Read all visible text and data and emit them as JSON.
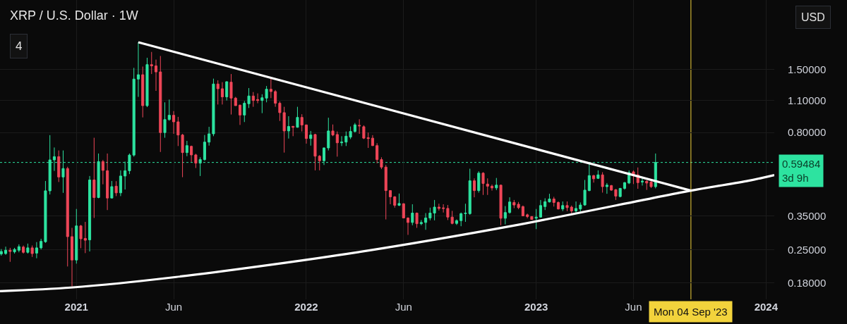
{
  "chart_data": {
    "type": "candlestick",
    "title": "XRP / U.S. Dollar · 1W",
    "log": true,
    "grid": true,
    "xlim": [
      "2020-09-05",
      "2024-01-14"
    ],
    "xticks": [
      {
        "value": "2021-01-04",
        "label": "2021"
      },
      {
        "value": "2021-06-07",
        "label": "Jun"
      },
      {
        "value": "2022-01-03",
        "label": "2022"
      },
      {
        "value": "2022-06-06",
        "label": "Jun"
      },
      {
        "value": "2023-01-02",
        "label": "2023"
      },
      {
        "value": "2023-06-05",
        "label": "Jun"
      },
      {
        "value": "2024-01-01",
        "label": "2024"
      }
    ],
    "ylim": [
      0.153,
      2.98
    ],
    "yticks": [
      {
        "value": 0.18,
        "label": "0.18000"
      },
      {
        "value": 0.25,
        "label": "0.25000"
      },
      {
        "value": 0.35,
        "label": "0.35000"
      },
      {
        "value": 0.8,
        "label": "0.80000"
      },
      {
        "value": 1.1,
        "label": "1.10000"
      },
      {
        "value": 1.5,
        "label": "1.50000"
      }
    ],
    "series": [
      {
        "type": "line",
        "color": "#ffffff",
        "x": [
          "2020-09-05",
          "2020-12-26",
          "2021-06-11",
          "2022-03-07",
          "2022-11-30",
          "2023-09-04",
          "2023-12-04",
          "2024-01-14"
        ],
        "values": [
          0.166,
          0.172,
          0.191,
          0.24,
          0.319,
          0.45,
          0.496,
          0.525
        ]
      },
      {
        "type": "line",
        "color": "#ffffff",
        "x": [
          "2021-04-12",
          "2023-09-04"
        ],
        "values": [
          1.96,
          0.45
        ]
      },
      {
        "x": [
          "2020-09-07",
          "2020-09-14",
          "2020-09-21",
          "2020-09-28",
          "2020-10-05",
          "2020-10-12",
          "2020-10-19",
          "2020-10-26",
          "2020-11-02",
          "2020-11-09",
          "2020-11-16",
          "2020-11-23",
          "2020-11-30",
          "2020-12-07",
          "2020-12-14",
          "2020-12-21",
          "2020-12-28",
          "2021-01-04",
          "2021-01-11",
          "2021-01-18",
          "2021-01-25",
          "2021-02-01",
          "2021-02-08",
          "2021-02-15",
          "2021-02-22",
          "2021-03-01",
          "2021-03-08",
          "2021-03-15",
          "2021-03-22",
          "2021-03-29",
          "2021-04-05",
          "2021-04-12",
          "2021-04-19",
          "2021-04-26",
          "2021-05-03",
          "2021-05-10",
          "2021-05-17",
          "2021-05-24",
          "2021-05-31",
          "2021-06-07",
          "2021-06-14",
          "2021-06-21",
          "2021-06-28",
          "2021-07-05",
          "2021-07-12",
          "2021-07-19",
          "2021-07-26",
          "2021-08-02",
          "2021-08-09",
          "2021-08-16",
          "2021-08-23",
          "2021-08-30",
          "2021-09-06",
          "2021-09-13",
          "2021-09-20",
          "2021-09-27",
          "2021-10-04",
          "2021-10-11",
          "2021-10-18",
          "2021-10-25",
          "2021-11-01",
          "2021-11-08",
          "2021-11-15",
          "2021-11-22",
          "2021-11-29",
          "2021-12-06",
          "2021-12-13",
          "2021-12-20",
          "2021-12-27",
          "2022-01-03",
          "2022-01-10",
          "2022-01-17",
          "2022-01-24",
          "2022-01-31",
          "2022-02-07",
          "2022-02-14",
          "2022-02-21",
          "2022-02-28",
          "2022-03-07",
          "2022-03-14",
          "2022-03-21",
          "2022-03-28",
          "2022-04-04",
          "2022-04-11",
          "2022-04-18",
          "2022-04-25",
          "2022-05-02",
          "2022-05-09",
          "2022-05-16",
          "2022-05-23",
          "2022-05-30",
          "2022-06-06",
          "2022-06-13",
          "2022-06-20",
          "2022-06-27",
          "2022-07-04",
          "2022-07-11",
          "2022-07-18",
          "2022-07-25",
          "2022-08-01",
          "2022-08-08",
          "2022-08-15",
          "2022-08-22",
          "2022-08-29",
          "2022-09-05",
          "2022-09-12",
          "2022-09-19",
          "2022-09-26",
          "2022-10-03",
          "2022-10-10",
          "2022-10-17",
          "2022-10-24",
          "2022-10-31",
          "2022-11-07",
          "2022-11-14",
          "2022-11-21",
          "2022-11-28",
          "2022-12-05",
          "2022-12-12",
          "2022-12-19",
          "2022-12-26",
          "2023-01-02",
          "2023-01-09",
          "2023-01-16",
          "2023-01-23",
          "2023-01-30",
          "2023-02-06",
          "2023-02-13",
          "2023-02-20",
          "2023-02-27",
          "2023-03-06",
          "2023-03-13",
          "2023-03-20",
          "2023-03-27",
          "2023-04-03",
          "2023-04-10",
          "2023-04-17",
          "2023-04-24",
          "2023-05-01",
          "2023-05-08",
          "2023-05-15",
          "2023-05-22",
          "2023-05-29",
          "2023-06-05",
          "2023-06-12",
          "2023-06-19",
          "2023-06-26",
          "2023-07-03",
          "2023-07-10"
        ],
        "ohlc": [
          [
            0.24,
            0.252,
            0.236,
            0.246
          ],
          [
            0.241,
            0.258,
            0.238,
            0.249
          ],
          [
            0.249,
            0.255,
            0.222,
            0.246
          ],
          [
            0.245,
            0.255,
            0.241,
            0.251
          ],
          [
            0.249,
            0.264,
            0.244,
            0.258
          ],
          [
            0.257,
            0.261,
            0.241,
            0.244
          ],
          [
            0.244,
            0.266,
            0.241,
            0.255
          ],
          [
            0.255,
            0.261,
            0.233,
            0.241
          ],
          [
            0.242,
            0.27,
            0.23,
            0.255
          ],
          [
            0.255,
            0.279,
            0.251,
            0.272
          ],
          [
            0.271,
            0.495,
            0.268,
            0.449
          ],
          [
            0.449,
            0.78,
            0.433,
            0.61
          ],
          [
            0.61,
            0.69,
            0.547,
            0.63
          ],
          [
            0.63,
            0.67,
            0.49,
            0.515
          ],
          [
            0.515,
            0.67,
            0.44,
            0.56
          ],
          [
            0.56,
            0.57,
            0.212,
            0.285
          ],
          [
            0.285,
            0.311,
            0.174,
            0.226
          ],
          [
            0.226,
            0.375,
            0.218,
            0.317
          ],
          [
            0.317,
            0.32,
            0.254,
            0.279
          ],
          [
            0.28,
            0.33,
            0.242,
            0.275
          ],
          [
            0.276,
            0.52,
            0.246,
            0.5
          ],
          [
            0.5,
            0.76,
            0.343,
            0.42
          ],
          [
            0.42,
            0.65,
            0.417,
            0.6
          ],
          [
            0.6,
            0.61,
            0.479,
            0.55
          ],
          [
            0.548,
            0.65,
            0.371,
            0.418
          ],
          [
            0.418,
            0.495,
            0.417,
            0.468
          ],
          [
            0.47,
            0.494,
            0.426,
            0.44
          ],
          [
            0.44,
            0.55,
            0.426,
            0.52
          ],
          [
            0.52,
            0.6,
            0.455,
            0.548
          ],
          [
            0.548,
            0.65,
            0.53,
            0.64
          ],
          [
            0.64,
            1.52,
            0.63,
            1.36
          ],
          [
            1.36,
            1.96,
            1.14,
            1.42
          ],
          [
            1.42,
            1.54,
            0.93,
            1.045
          ],
          [
            1.045,
            1.68,
            1.03,
            1.57
          ],
          [
            1.57,
            1.78,
            1.43,
            1.55
          ],
          [
            1.55,
            1.65,
            1.21,
            1.46
          ],
          [
            1.46,
            1.71,
            0.66,
            0.8
          ],
          [
            0.8,
            1.08,
            0.76,
            0.91
          ],
          [
            0.91,
            1.11,
            0.9,
            0.95
          ],
          [
            0.95,
            0.99,
            0.79,
            0.89
          ],
          [
            0.89,
            0.935,
            0.7,
            0.781
          ],
          [
            0.781,
            0.79,
            0.514,
            0.656
          ],
          [
            0.656,
            0.737,
            0.633,
            0.703
          ],
          [
            0.698,
            0.703,
            0.598,
            0.641
          ],
          [
            0.641,
            0.648,
            0.563,
            0.591
          ],
          [
            0.591,
            0.626,
            0.52,
            0.612
          ],
          [
            0.612,
            0.781,
            0.605,
            0.728
          ],
          [
            0.728,
            0.847,
            0.703,
            0.79
          ],
          [
            0.79,
            1.366,
            0.772,
            1.295
          ],
          [
            1.295,
            1.344,
            1.057,
            1.236
          ],
          [
            1.236,
            1.319,
            1.057,
            1.14
          ],
          [
            1.14,
            1.33,
            1.1,
            1.325
          ],
          [
            1.319,
            1.43,
            0.957,
            1.126
          ],
          [
            1.126,
            1.14,
            1.045,
            1.045
          ],
          [
            1.05,
            1.057,
            0.863,
            0.952
          ],
          [
            0.952,
            1.095,
            0.888,
            1.07
          ],
          [
            1.065,
            1.244,
            1.021,
            1.15
          ],
          [
            1.15,
            1.196,
            1.033,
            1.1
          ],
          [
            1.11,
            1.18,
            1.07,
            1.1
          ],
          [
            1.1,
            1.17,
            0.97,
            1.13
          ],
          [
            1.126,
            1.27,
            1.08,
            1.23
          ],
          [
            1.23,
            1.366,
            1.126,
            1.202
          ],
          [
            1.202,
            1.22,
            1.033,
            1.07
          ],
          [
            1.07,
            1.09,
            0.898,
            0.975
          ],
          [
            0.975,
            1.033,
            0.656,
            0.813
          ],
          [
            0.813,
            0.941,
            0.754,
            0.85
          ],
          [
            0.851,
            0.855,
            0.772,
            0.843
          ],
          [
            0.843,
            1.033,
            0.84,
            0.93
          ],
          [
            0.93,
            0.96,
            0.809,
            0.863
          ],
          [
            0.863,
            0.867,
            0.717,
            0.754
          ],
          [
            0.754,
            0.813,
            0.703,
            0.781
          ],
          [
            0.785,
            0.79,
            0.55,
            0.633
          ],
          [
            0.633,
            0.64,
            0.55,
            0.605
          ],
          [
            0.605,
            0.69,
            0.58,
            0.687
          ],
          [
            0.687,
            0.927,
            0.67,
            0.813
          ],
          [
            0.813,
            0.867,
            0.772,
            0.781
          ],
          [
            0.785,
            0.809,
            0.63,
            0.723
          ],
          [
            0.723,
            0.772,
            0.7,
            0.728
          ],
          [
            0.728,
            0.809,
            0.7,
            0.772
          ],
          [
            0.765,
            0.85,
            0.75,
            0.809
          ],
          [
            0.809,
            0.88,
            0.8,
            0.864
          ],
          [
            0.86,
            0.913,
            0.79,
            0.855
          ],
          [
            0.848,
            0.86,
            0.75,
            0.757
          ],
          [
            0.76,
            0.8,
            0.687,
            0.754
          ],
          [
            0.757,
            0.78,
            0.7,
            0.703
          ],
          [
            0.703,
            0.72,
            0.59,
            0.612
          ],
          [
            0.612,
            0.626,
            0.557,
            0.568
          ],
          [
            0.568,
            0.58,
            0.338,
            0.45
          ],
          [
            0.45,
            0.452,
            0.393,
            0.423
          ],
          [
            0.423,
            0.426,
            0.38,
            0.389
          ],
          [
            0.389,
            0.437,
            0.386,
            0.396
          ],
          [
            0.395,
            0.397,
            0.343,
            0.343
          ],
          [
            0.343,
            0.345,
            0.29,
            0.328
          ],
          [
            0.328,
            0.393,
            0.319,
            0.36
          ],
          [
            0.36,
            0.362,
            0.311,
            0.324
          ],
          [
            0.324,
            0.336,
            0.319,
            0.328
          ],
          [
            0.328,
            0.36,
            0.305,
            0.343
          ],
          [
            0.343,
            0.38,
            0.335,
            0.36
          ],
          [
            0.36,
            0.41,
            0.335,
            0.382
          ],
          [
            0.382,
            0.395,
            0.369,
            0.377
          ],
          [
            0.379,
            0.393,
            0.362,
            0.377
          ],
          [
            0.377,
            0.39,
            0.336,
            0.346
          ],
          [
            0.346,
            0.368,
            0.322,
            0.325
          ],
          [
            0.325,
            0.338,
            0.32,
            0.334
          ],
          [
            0.334,
            0.362,
            0.316,
            0.358
          ],
          [
            0.358,
            0.395,
            0.33,
            0.36
          ],
          [
            0.358,
            0.559,
            0.354,
            0.496
          ],
          [
            0.496,
            0.508,
            0.421,
            0.45
          ],
          [
            0.45,
            0.545,
            0.441,
            0.535
          ],
          [
            0.535,
            0.54,
            0.431,
            0.483
          ],
          [
            0.48,
            0.508,
            0.431,
            0.47
          ],
          [
            0.47,
            0.478,
            0.45,
            0.462
          ],
          [
            0.462,
            0.51,
            0.452,
            0.475
          ],
          [
            0.475,
            0.477,
            0.319,
            0.342
          ],
          [
            0.342,
            0.386,
            0.322,
            0.362
          ],
          [
            0.362,
            0.421,
            0.358,
            0.402
          ],
          [
            0.4,
            0.41,
            0.378,
            0.39
          ],
          [
            0.393,
            0.402,
            0.374,
            0.38
          ],
          [
            0.384,
            0.388,
            0.349,
            0.35
          ],
          [
            0.354,
            0.358,
            0.342,
            0.348
          ],
          [
            0.348,
            0.349,
            0.338,
            0.338
          ],
          [
            0.342,
            0.375,
            0.307,
            0.346
          ],
          [
            0.346,
            0.41,
            0.344,
            0.388
          ],
          [
            0.384,
            0.417,
            0.371,
            0.403
          ],
          [
            0.402,
            0.436,
            0.4,
            0.414
          ],
          [
            0.414,
            0.423,
            0.384,
            0.4
          ],
          [
            0.4,
            0.404,
            0.373,
            0.375
          ],
          [
            0.375,
            0.404,
            0.367,
            0.388
          ],
          [
            0.388,
            0.404,
            0.367,
            0.38
          ],
          [
            0.382,
            0.388,
            0.356,
            0.368
          ],
          [
            0.368,
            0.404,
            0.36,
            0.377
          ],
          [
            0.375,
            0.4,
            0.366,
            0.39
          ],
          [
            0.39,
            0.5,
            0.387,
            0.452
          ],
          [
            0.45,
            0.595,
            0.447,
            0.522
          ],
          [
            0.522,
            0.526,
            0.487,
            0.506
          ],
          [
            0.508,
            0.55,
            0.505,
            0.526
          ],
          [
            0.526,
            0.54,
            0.441,
            0.468
          ],
          [
            0.468,
            0.485,
            0.436,
            0.475
          ],
          [
            0.473,
            0.476,
            0.449,
            0.452
          ],
          [
            0.454,
            0.457,
            0.41,
            0.426
          ],
          [
            0.424,
            0.462,
            0.421,
            0.46
          ],
          [
            0.46,
            0.49,
            0.454,
            0.487
          ],
          [
            0.485,
            0.55,
            0.48,
            0.538
          ],
          [
            0.542,
            0.55,
            0.48,
            0.526
          ],
          [
            0.526,
            0.566,
            0.458,
            0.487
          ],
          [
            0.49,
            0.508,
            0.473,
            0.494
          ],
          [
            0.494,
            0.498,
            0.453,
            0.485
          ],
          [
            0.49,
            0.496,
            0.462,
            0.468
          ],
          [
            0.468,
            0.65,
            0.46,
            0.59484
          ]
        ],
        "colors": [
          "#2de3a0",
          "#2de3a0",
          "#ef4658",
          "#2de3a0",
          "#2de3a0",
          "#ef4658",
          "#2de3a0",
          "#ef4658",
          "#2de3a0",
          "#2de3a0",
          "#2de3a0",
          "#2de3a0",
          "#2de3a0",
          "#ef4658",
          "#2de3a0",
          "#ef4658",
          "#ef4658",
          "#2de3a0",
          "#ef4658",
          "#ef4658",
          "#2de3a0",
          "#ef4658",
          "#2de3a0",
          "#ef4658",
          "#ef4658",
          "#2de3a0",
          "#ef4658",
          "#2de3a0",
          "#2de3a0",
          "#2de3a0",
          "#2de3a0",
          "#2de3a0",
          "#ef4658",
          "#2de3a0",
          "#ef4658",
          "#ef4658",
          "#ef4658",
          "#2de3a0",
          "#2de3a0",
          "#ef4658",
          "#ef4658",
          "#ef4658",
          "#2de3a0",
          "#ef4658",
          "#ef4658",
          "#2de3a0",
          "#2de3a0",
          "#2de3a0",
          "#2de3a0",
          "#ef4658",
          "#ef4658",
          "#2de3a0",
          "#ef4658",
          "#ef4658",
          "#ef4658",
          "#2de3a0",
          "#2de3a0",
          "#ef4658",
          "#ef4658",
          "#2de3a0",
          "#2de3a0",
          "#ef4658",
          "#ef4658",
          "#ef4658",
          "#ef4658",
          "#2de3a0",
          "#ef4658",
          "#2de3a0",
          "#ef4658",
          "#ef4658",
          "#2de3a0",
          "#ef4658",
          "#ef4658",
          "#2de3a0",
          "#2de3a0",
          "#ef4658",
          "#ef4658",
          "#2de3a0",
          "#2de3a0",
          "#2de3a0",
          "#2de3a0",
          "#ef4658",
          "#ef4658",
          "#ef4658",
          "#ef4658",
          "#ef4658",
          "#ef4658",
          "#ef4658",
          "#ef4658",
          "#ef4658",
          "#2de3a0",
          "#ef4658",
          "#ef4658",
          "#2de3a0",
          "#ef4658",
          "#2de3a0",
          "#2de3a0",
          "#2de3a0",
          "#2de3a0",
          "#ef4658",
          "#ef4658",
          "#ef4658",
          "#ef4658",
          "#2de3a0",
          "#2de3a0",
          "#2de3a0",
          "#2de3a0",
          "#ef4658",
          "#2de3a0",
          "#ef4658",
          "#ef4658",
          "#ef4658",
          "#2de3a0",
          "#ef4658",
          "#2de3a0",
          "#2de3a0",
          "#ef4658",
          "#ef4658",
          "#ef4658",
          "#ef4658",
          "#ef4658",
          "#2de3a0",
          "#2de3a0",
          "#2de3a0",
          "#2de3a0",
          "#ef4658",
          "#ef4658",
          "#2de3a0",
          "#ef4658",
          "#ef4658",
          "#2de3a0",
          "#2de3a0",
          "#2de3a0",
          "#2de3a0",
          "#ef4658",
          "#2de3a0",
          "#ef4658",
          "#2de3a0",
          "#ef4658",
          "#ef4658",
          "#2de3a0",
          "#2de3a0",
          "#2de3a0",
          "#ef4658",
          "#ef4658",
          "#2de3a0",
          "#ef4658",
          "#ef4658",
          "#2de3a0"
        ]
      }
    ],
    "ref_lines": [
      {
        "axis": "y",
        "value": 0.59484,
        "label": "0.59484\n3d 9h",
        "color": "#2de3a0",
        "line_style": "dotted"
      },
      {
        "axis": "x",
        "value": "2023-09-04",
        "label": "Mon 04 Sep '23",
        "color": "#f2d33c",
        "line_style": "solid"
      }
    ],
    "annotations": [
      "4",
      "USD"
    ]
  }
}
